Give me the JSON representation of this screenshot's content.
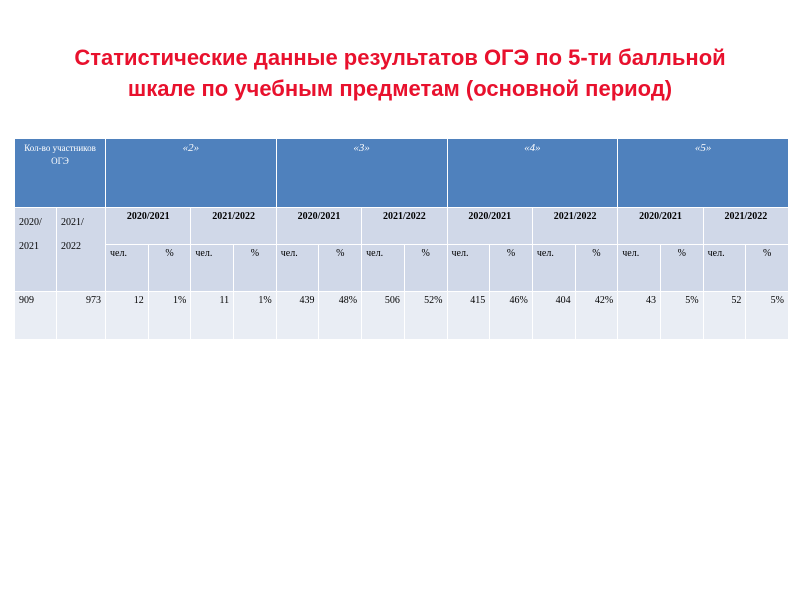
{
  "title": "Статистические данные результатов ОГЭ по 5-ти балльной шкале по учебным предметам (основной период)",
  "table": {
    "participants_header": "Кол-во участников ОГЭ",
    "grades": [
      "«2»",
      "«3»",
      "«4»",
      "«5»"
    ],
    "participant_years": [
      "2020/ 2021",
      "2021/ 2022"
    ],
    "periods": [
      "2020/2021",
      "2021/2022",
      "2020/2021",
      "2021/2022",
      "2020/2021",
      "2021/2022",
      "2020/2021",
      "2021/2022"
    ],
    "units": [
      "чел.",
      "%",
      "чел.",
      "%",
      "чел.",
      "%",
      "чел.",
      "%",
      "чел.",
      "%",
      "чел.",
      "%",
      "чел.",
      "%",
      "чел.",
      "%"
    ],
    "rows": [
      [
        "909",
        "973",
        "12",
        "1%",
        "11",
        "1%",
        "439",
        "48%",
        "506",
        "52%",
        "415",
        "46%",
        "404",
        "42%",
        "43",
        "5%",
        "52",
        "5%"
      ]
    ]
  }
}
